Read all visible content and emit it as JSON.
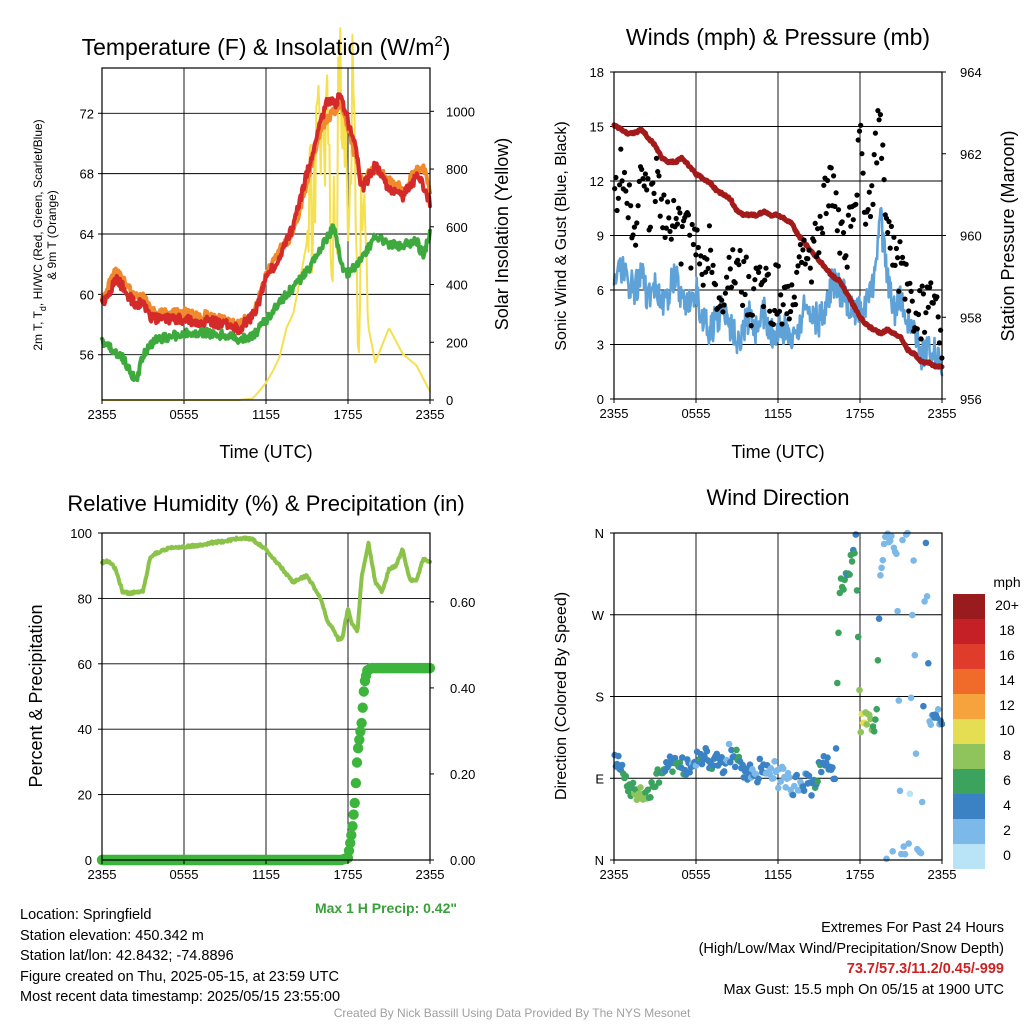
{
  "chart_data": [
    {
      "type": "line",
      "title": "Temperature (F) & Insolation (W/m²)",
      "title_main": "Temperature (F) & Insolation (W/m",
      "title_sup": "2",
      "title_end": ")",
      "xlabel": "Time (UTC)",
      "ylabel": "2m T, Td, HI/WC (Red, Green, Scarlet/Blue) & 9m T (Orange)",
      "ylabel_line1": "2m T, T",
      "ylabel_sub": "d",
      "ylabel_line1_rest": ", HI/WC (Red, Green, Scarlet/Blue)",
      "ylabel_line2": "& 9m T (Orange)",
      "y2label": "Solar Insolation (Yellow)",
      "x_ticks": [
        "2355",
        "0555",
        "1155",
        "1755",
        "2355"
      ],
      "y_ticks": [
        56,
        60,
        64,
        68,
        72
      ],
      "y2_ticks": [
        0,
        200,
        400,
        600,
        800,
        1000
      ],
      "ylim": [
        53,
        75
      ],
      "y2lim": [
        0,
        1150
      ],
      "x_hours": [
        0,
        24
      ],
      "series": [
        {
          "role": "temperature",
          "color": "#d42a2a",
          "x": [
            0,
            0.5,
            1,
            1.5,
            2,
            2.5,
            3,
            3.5,
            4,
            5,
            6,
            7,
            8,
            9,
            10,
            11,
            11.5,
            12,
            13,
            14,
            15,
            16,
            16.5,
            17,
            17.5,
            18,
            18.5,
            19,
            20,
            21,
            22,
            23,
            23.5,
            24
          ],
          "values": [
            59.5,
            60,
            61,
            60.5,
            59.8,
            59.3,
            59.5,
            58.5,
            58.4,
            58.3,
            58.4,
            58.2,
            58.2,
            58,
            57.7,
            58.5,
            59.5,
            61,
            62.5,
            64.5,
            68,
            71.5,
            72.8,
            72.6,
            73.2,
            71.5,
            70,
            67,
            68.5,
            67,
            66.5,
            67.8,
            67.2,
            66
          ]
        },
        {
          "role": "9m temperature",
          "color": "#f08a2e",
          "x": [
            0,
            0.5,
            1,
            1.5,
            2,
            2.5,
            3,
            3.5,
            4,
            5,
            6,
            7,
            8,
            9,
            10,
            11,
            11.5,
            12,
            13,
            14,
            15,
            16,
            17,
            17.5,
            18,
            19,
            20,
            21,
            22,
            23,
            23.5,
            24
          ],
          "values": [
            59.8,
            60.6,
            61.6,
            61,
            60.3,
            59.8,
            59.9,
            59,
            58.8,
            58.7,
            58.8,
            58.6,
            58.6,
            58.3,
            58,
            58.8,
            59.8,
            61.3,
            63,
            64,
            67.5,
            71,
            72.2,
            72.5,
            71,
            67.5,
            68.5,
            67.5,
            67,
            68.2,
            68.4,
            67
          ]
        },
        {
          "role": "dewpoint",
          "color": "#3eaa3e",
          "x": [
            0,
            0.5,
            1,
            1.5,
            2,
            2.5,
            3,
            3.5,
            4,
            5,
            6,
            7,
            8,
            9,
            10,
            11,
            12,
            13,
            14,
            15,
            16,
            17,
            17.5,
            18,
            19,
            20,
            21,
            22,
            23,
            23.5,
            24
          ],
          "values": [
            56.8,
            56.5,
            56.2,
            55.8,
            55,
            54.2,
            56,
            56.6,
            57,
            57.2,
            57.4,
            57.5,
            57.4,
            57.3,
            57,
            57.2,
            58.3,
            59.5,
            60.5,
            61.5,
            63,
            64.5,
            62,
            61.3,
            62.3,
            63.8,
            63.3,
            63.2,
            63.6,
            62.5,
            64
          ]
        },
        {
          "role": "solar insolation",
          "axis": "y2",
          "color": "#f5e050",
          "x": [
            0,
            2,
            4,
            6,
            8,
            10,
            11,
            11.5,
            12,
            12.5,
            13,
            13.5,
            14,
            14.5,
            15,
            15.5,
            16,
            16.5,
            17,
            17.3,
            17.6,
            18,
            18.3,
            18.7,
            19,
            19.5,
            20,
            21,
            22,
            23,
            24
          ],
          "values": [
            0,
            0,
            0,
            0,
            0,
            0,
            5,
            30,
            60,
            100,
            150,
            250,
            300,
            420,
            550,
            700,
            900,
            1000,
            500,
            950,
            1100,
            850,
            1050,
            300,
            600,
            250,
            130,
            250,
            160,
            120,
            30
          ]
        }
      ]
    },
    {
      "type": "line",
      "title": "Winds (mph) & Pressure (mb)",
      "xlabel": "Time (UTC)",
      "ylabel": "Sonic Wind & Gust (Blue, Black)",
      "y2label": "Station Pressure (Maroon)",
      "x_ticks": [
        "2355",
        "0555",
        "1155",
        "1755",
        "2355"
      ],
      "y_ticks": [
        0,
        3,
        6,
        9,
        12,
        15,
        18
      ],
      "y2_ticks": [
        956,
        958,
        960,
        962,
        964
      ],
      "ylim": [
        0,
        18
      ],
      "y2lim": [
        956,
        964
      ],
      "series": [
        {
          "role": "sonic wind",
          "color": "#5fa2d8",
          "x": [
            0,
            0.5,
            1,
            1.5,
            2,
            2.5,
            3,
            3.5,
            4,
            4.5,
            5,
            5.5,
            6,
            6.5,
            7,
            7.5,
            8,
            8.5,
            9,
            9.5,
            10,
            10.5,
            11,
            11.5,
            12,
            12.5,
            13,
            13.5,
            14,
            14.5,
            15,
            15.5,
            16,
            16.5,
            17,
            17.5,
            18,
            18.5,
            19,
            19.5,
            20,
            20.5,
            21,
            21.5,
            22,
            22.5,
            23,
            23.5,
            24
          ],
          "values": [
            7,
            7.2,
            6.5,
            6,
            6.8,
            5.5,
            6.2,
            5,
            5.8,
            7,
            5.5,
            5.2,
            6,
            4.5,
            3.5,
            4.5,
            5,
            4,
            3.2,
            4,
            4.8,
            3.5,
            4.8,
            3.5,
            4,
            3.8,
            3.5,
            4,
            5,
            4.8,
            4.2,
            5,
            6.5,
            6,
            5.5,
            5,
            4.8,
            5.5,
            6.5,
            10,
            6.5,
            4.8,
            5.5,
            4,
            3.5,
            2.5,
            2.8,
            2.5,
            2
          ]
        },
        {
          "role": "gust",
          "color": "#000000",
          "x": [
            0,
            0.5,
            1,
            1.5,
            2,
            2.5,
            3,
            3.5,
            4,
            4.5,
            5,
            5.5,
            6,
            6.5,
            7,
            7.5,
            8,
            8.5,
            9,
            9.5,
            10,
            10.5,
            11,
            11.5,
            12,
            12.5,
            13,
            13.5,
            14,
            14.5,
            15,
            15.5,
            16,
            16.5,
            17,
            17.5,
            18,
            18.5,
            19,
            19.5,
            20,
            20.5,
            21,
            21.5,
            22,
            22.5,
            23,
            23.5,
            24
          ],
          "values": [
            11,
            13,
            10.5,
            9.5,
            11.5,
            10.5,
            12,
            11,
            9,
            10,
            8.5,
            9,
            8,
            7.5,
            8.5,
            6.5,
            6,
            7,
            6.5,
            6.8,
            5.5,
            6.2,
            5.8,
            5.5,
            6,
            5.5,
            6.2,
            7,
            8,
            7.5,
            9,
            11,
            12,
            9,
            8.5,
            10.5,
            14,
            10.5,
            12.5,
            15.5,
            9.5,
            8,
            7,
            6.5,
            5,
            4.5,
            6,
            5.5,
            3.5
          ]
        },
        {
          "role": "station pressure",
          "axis": "y2",
          "color": "#a31a1a",
          "x": [
            0,
            0.5,
            1,
            1.5,
            2,
            2.5,
            3,
            3.5,
            4,
            4.5,
            5,
            5.5,
            6,
            6.5,
            7,
            7.5,
            8,
            8.5,
            9,
            9.5,
            10,
            10.5,
            11,
            11.5,
            12,
            12.5,
            13,
            13.5,
            14,
            14.5,
            15,
            15.5,
            16,
            16.5,
            17,
            17.5,
            18,
            18.5,
            19,
            19.5,
            20,
            20.5,
            21,
            21.5,
            22,
            22.5,
            23,
            23.5,
            24
          ],
          "values": [
            962.7,
            962.6,
            962.5,
            962.5,
            962.6,
            962.4,
            962.2,
            961.9,
            961.8,
            961.8,
            961.9,
            961.7,
            961.5,
            961.4,
            961.3,
            961.1,
            961,
            960.9,
            960.6,
            960.5,
            960.5,
            960.5,
            960.6,
            960.5,
            960.5,
            960.4,
            960.3,
            960,
            959.8,
            959.6,
            959.4,
            959.2,
            959,
            958.9,
            958.6,
            958.3,
            958,
            957.8,
            957.7,
            957.6,
            957.7,
            957.6,
            957.5,
            957.2,
            957.1,
            956.9,
            956.9,
            956.8,
            956.8
          ]
        }
      ]
    },
    {
      "type": "line",
      "title": "Relative Humidity (%) & Precipitation (in)",
      "ylabel": "Percent & Precipitation",
      "x_ticks": [
        "2355",
        "0555",
        "1155",
        "1755",
        "2355"
      ],
      "y_ticks": [
        0,
        20,
        40,
        60,
        80,
        100
      ],
      "y2_ticks": [
        "0.00",
        "0.20",
        "0.40",
        "0.60"
      ],
      "ylim": [
        0,
        100
      ],
      "y2lim": [
        0,
        0.76
      ],
      "annotation": "Max 1 H Precip: 0.42\"",
      "series": [
        {
          "role": "relative humidity",
          "color": "#8bc34a",
          "x": [
            0,
            0.5,
            1,
            1.5,
            2,
            2.5,
            3,
            3.5,
            4,
            5,
            6,
            7,
            8,
            9,
            10,
            11,
            12,
            13,
            14,
            15,
            16,
            16.5,
            17,
            17.3,
            17.6,
            18,
            18.3,
            18.7,
            19,
            19.5,
            20,
            20.5,
            21,
            21.5,
            22,
            22.5,
            23,
            23.5,
            24
          ],
          "values": [
            91,
            91.5,
            89,
            82,
            81.5,
            82,
            82,
            92,
            94,
            95.5,
            95.8,
            96.2,
            97,
            97.5,
            98.5,
            98,
            95,
            90,
            85,
            87,
            80,
            73,
            70,
            67.5,
            68,
            77,
            72,
            70,
            87,
            97,
            85,
            82,
            89,
            90,
            95,
            86,
            85,
            92,
            91
          ]
        },
        {
          "role": "accumulated precipitation",
          "axis": "y2",
          "color": "#3db53d",
          "x": [
            0,
            17.5,
            18,
            18.3,
            18.5,
            18.7,
            19,
            19.2,
            19.4,
            19.7,
            20,
            21,
            22,
            23,
            24
          ],
          "values": [
            0,
            0,
            0.005,
            0.07,
            0.135,
            0.25,
            0.32,
            0.41,
            0.44,
            0.446,
            0.446,
            0.446,
            0.446,
            0.446,
            0.446
          ]
        }
      ]
    },
    {
      "type": "scatter",
      "title": "Wind Direction",
      "ylabel": "Direction (Colored By Speed)",
      "x_ticks": [
        "2355",
        "0555",
        "1155",
        "1755",
        "2355"
      ],
      "y_ticks": [
        "N",
        "E",
        "S",
        "W",
        "N"
      ],
      "colorbar_title": "mph",
      "colorbar_labels": [
        "20+",
        "18",
        "16",
        "14",
        "12",
        "10",
        "8",
        "6",
        "4",
        "2",
        "0"
      ],
      "colorbar_colors": [
        "#9a1b1e",
        "#c42026",
        "#e03c2c",
        "#f06a29",
        "#f7a33d",
        "#e5de52",
        "#8fc45d",
        "#3ba35e",
        "#3b82c4",
        "#7db9e8",
        "#b9e3f7"
      ],
      "points_hours": [
        0,
        0.3,
        0.6,
        0.9,
        1.2,
        1.5,
        1.8,
        2.1,
        2.4,
        2.7,
        3,
        3.3,
        3.6,
        3.9,
        4.2,
        4.5,
        4.8,
        5.1,
        5.4,
        5.7,
        6,
        6.3,
        6.6,
        6.9,
        7.2,
        7.5,
        7.8,
        8.1,
        8.4,
        8.7,
        9,
        9.3,
        9.6,
        9.9,
        10.2,
        10.5,
        10.8,
        11.1,
        11.4,
        11.7,
        12,
        12.3,
        12.6,
        12.9,
        13.2,
        13.5,
        13.8,
        14.1,
        14.4,
        14.7,
        15,
        15.3,
        15.6,
        15.9,
        16.2,
        16.5,
        16.8,
        17.1,
        17.4,
        17.7,
        18,
        18.3,
        18.6,
        18.9,
        19.2,
        19.5,
        19.8,
        20.1,
        20.4,
        20.7,
        21,
        21.3,
        21.6,
        21.9,
        22.2,
        22.5,
        22.8,
        23.1,
        23.4,
        23.7,
        24
      ],
      "points_direction_deg": [
        118,
        108,
        100,
        88,
        78,
        76,
        72,
        68,
        70,
        76,
        82,
        92,
        100,
        108,
        106,
        110,
        104,
        102,
        100,
        98,
        112,
        106,
        118,
        108,
        100,
        112,
        106,
        100,
        118,
        108,
        112,
        102,
        98,
        94,
        104,
        96,
        104,
        96,
        92,
        100,
        88,
        96,
        90,
        84,
        80,
        86,
        74,
        96,
        80,
        90,
        98,
        106,
        110,
        102,
        92,
        300,
        300,
        315,
        328,
        350,
        150,
        158,
        160,
        152,
        145,
        320,
        352,
        358,
        360,
        340,
        0,
        8,
        12,
        358,
        6,
        14,
        356,
        152,
        156,
        158,
        160
      ],
      "points_speed_mph": [
        5,
        5,
        6,
        6,
        7,
        7,
        8,
        8,
        7,
        6,
        6,
        5,
        5,
        4,
        5,
        4,
        5,
        5,
        4,
        4,
        3,
        5,
        4,
        4,
        5,
        4,
        4,
        4,
        3,
        4,
        5,
        4,
        4,
        4,
        3,
        3,
        4,
        3,
        2,
        3,
        2,
        3,
        2,
        2,
        3,
        2,
        4,
        3,
        3,
        5,
        5,
        4,
        4,
        4,
        4,
        6,
        5,
        5,
        5,
        5,
        9,
        10,
        8,
        7,
        6,
        3,
        2,
        2,
        2,
        2,
        3,
        2,
        1,
        2,
        2,
        2,
        3,
        3,
        3,
        3,
        3
      ]
    }
  ],
  "info_left": {
    "location": "Location: Springfield",
    "elevation": "Station elevation: 450.342 m",
    "latlon": "Station lat/lon: 42.8432; -74.8896",
    "created": "Figure created on Thu, 2025-05-15, at 23:59 UTC",
    "recent": "Most recent data timestamp: 2025/05/15 23:55:00"
  },
  "info_right": {
    "title": "Extremes For Past 24 Hours",
    "subtitle": "(High/Low/Max Wind/Precipitation/Snow Depth)",
    "values": "73.7/57.3/11.2/0.45/-999",
    "gust": "Max Gust: 15.5 mph On 05/15 at 1900 UTC"
  },
  "credit": "Created By Nick Bassill Using Data Provided By The NYS Mesonet"
}
